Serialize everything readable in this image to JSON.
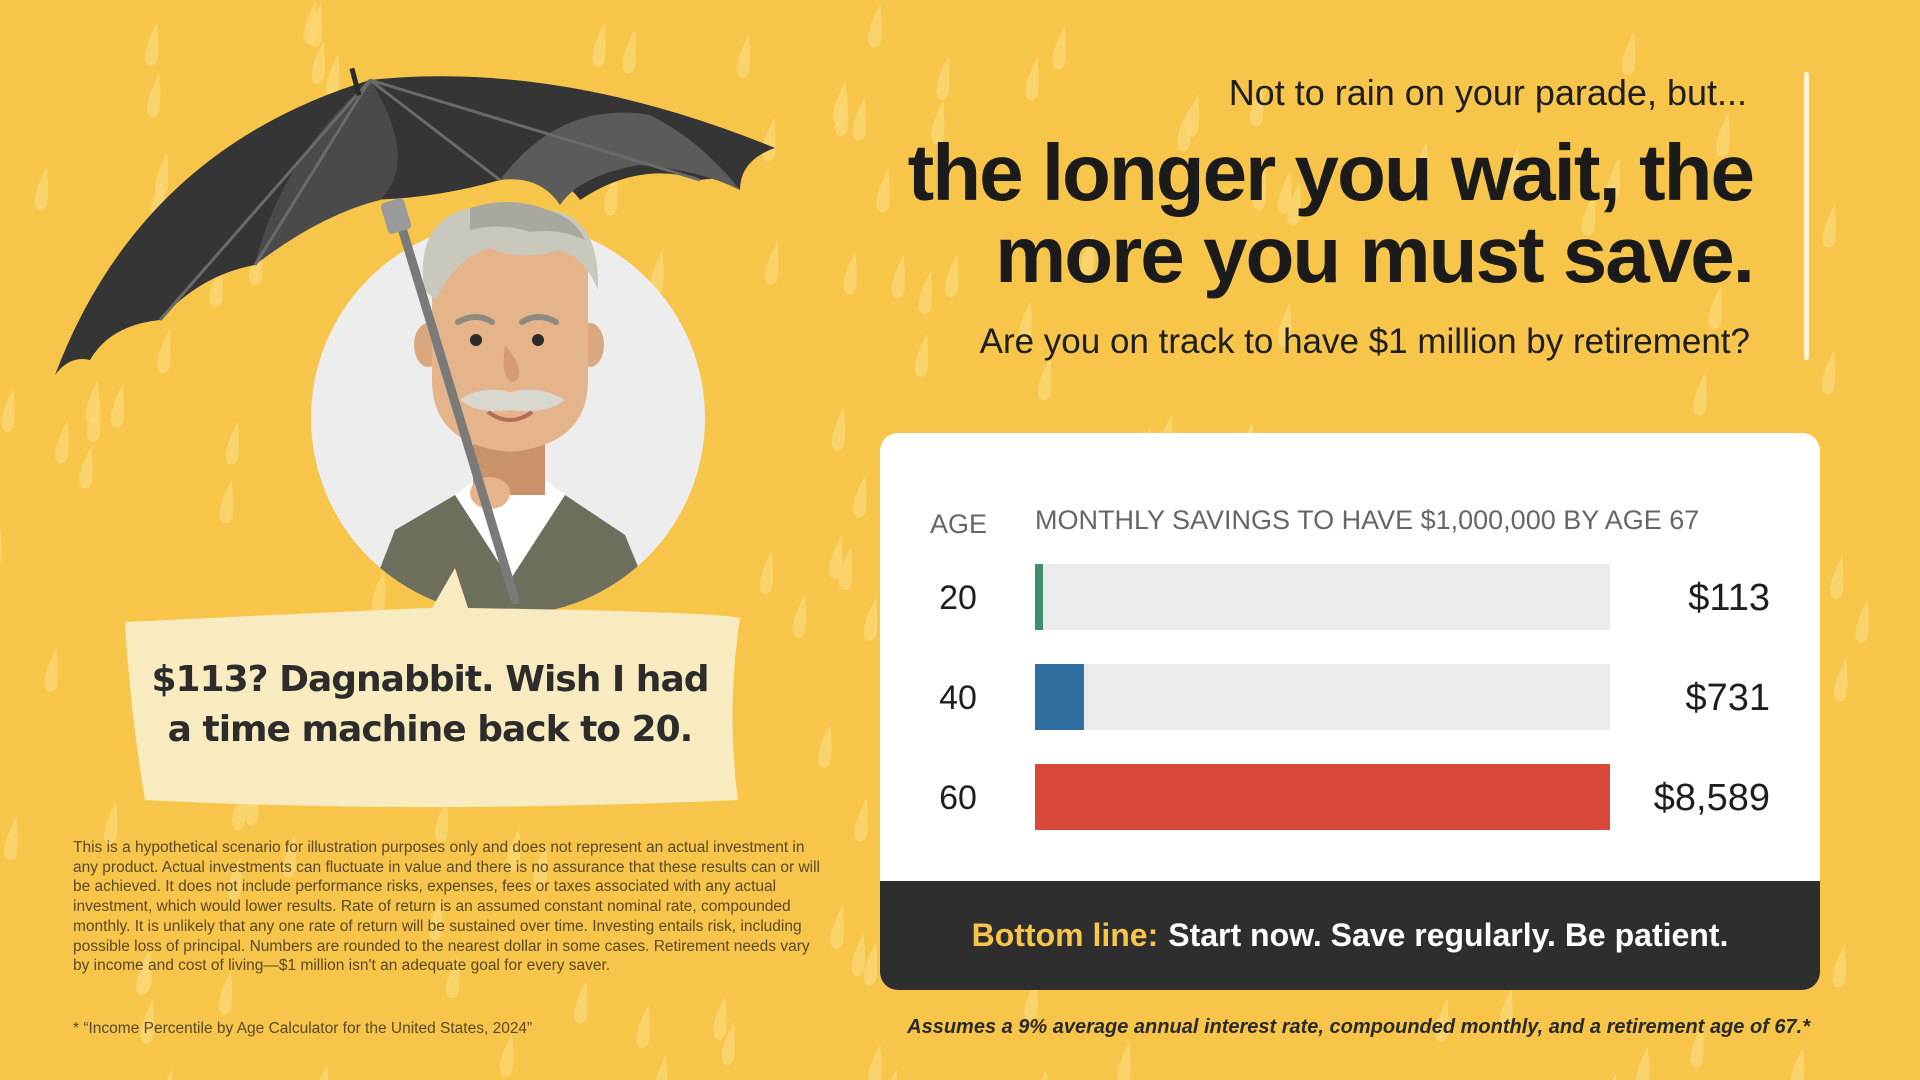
{
  "headline": {
    "pre": "Not to rain on your parade, but...",
    "main_line1": "the longer you wait, the",
    "main_line2": "more you must save.",
    "sub": "Are you on track to have $1 million by retirement?"
  },
  "bubble": {
    "line1": "$113? Dagnabbit. Wish I had",
    "line2": "a time machine back to 20."
  },
  "chart_data": {
    "type": "bar",
    "orientation": "horizontal",
    "category_header": "AGE",
    "value_header": "MONTHLY SAVINGS TO HAVE $1,000,000 BY AGE 67",
    "categories": [
      "20",
      "40",
      "60"
    ],
    "values": [
      113,
      731,
      8589
    ],
    "value_labels": [
      "$113",
      "$731",
      "$8,589"
    ],
    "xlim": [
      0,
      8589
    ],
    "colors": [
      "#3d8f6a",
      "#2f6e9e",
      "#d9493a"
    ],
    "track_color": "#ebebeb",
    "grid": false
  },
  "bottom_line": {
    "label": "Bottom line:",
    "text": "Start now. Save regularly. Be patient."
  },
  "assumption": "Assumes a 9% average annual interest rate, compounded monthly, and a retirement age of 67.*",
  "disclaimer": "This is a hypothetical scenario for illustration purposes only and does not represent an actual investment in any product. Actual investments can fluctuate in value and there is no assurance that these results can or will be achieved. It does not include performance risks, expenses, fees or taxes associated with any actual investment, which would lower results. Rate of return is an assumed constant nominal rate, compounded monthly. It is unlikely that any one rate of return will be sustained over time. Investing entails risk, including possible loss of principal. Numbers are rounded to the nearest dollar in some cases. Retirement needs vary by income and cost of living—$1 million isn't an adequate goal for every saver.",
  "footnote": "* “Income Percentile by Age Calculator for the United States, 2024”",
  "colors": {
    "background": "#f6c54a",
    "accent": "#f6c54a",
    "dark": "#2e2e2e"
  }
}
